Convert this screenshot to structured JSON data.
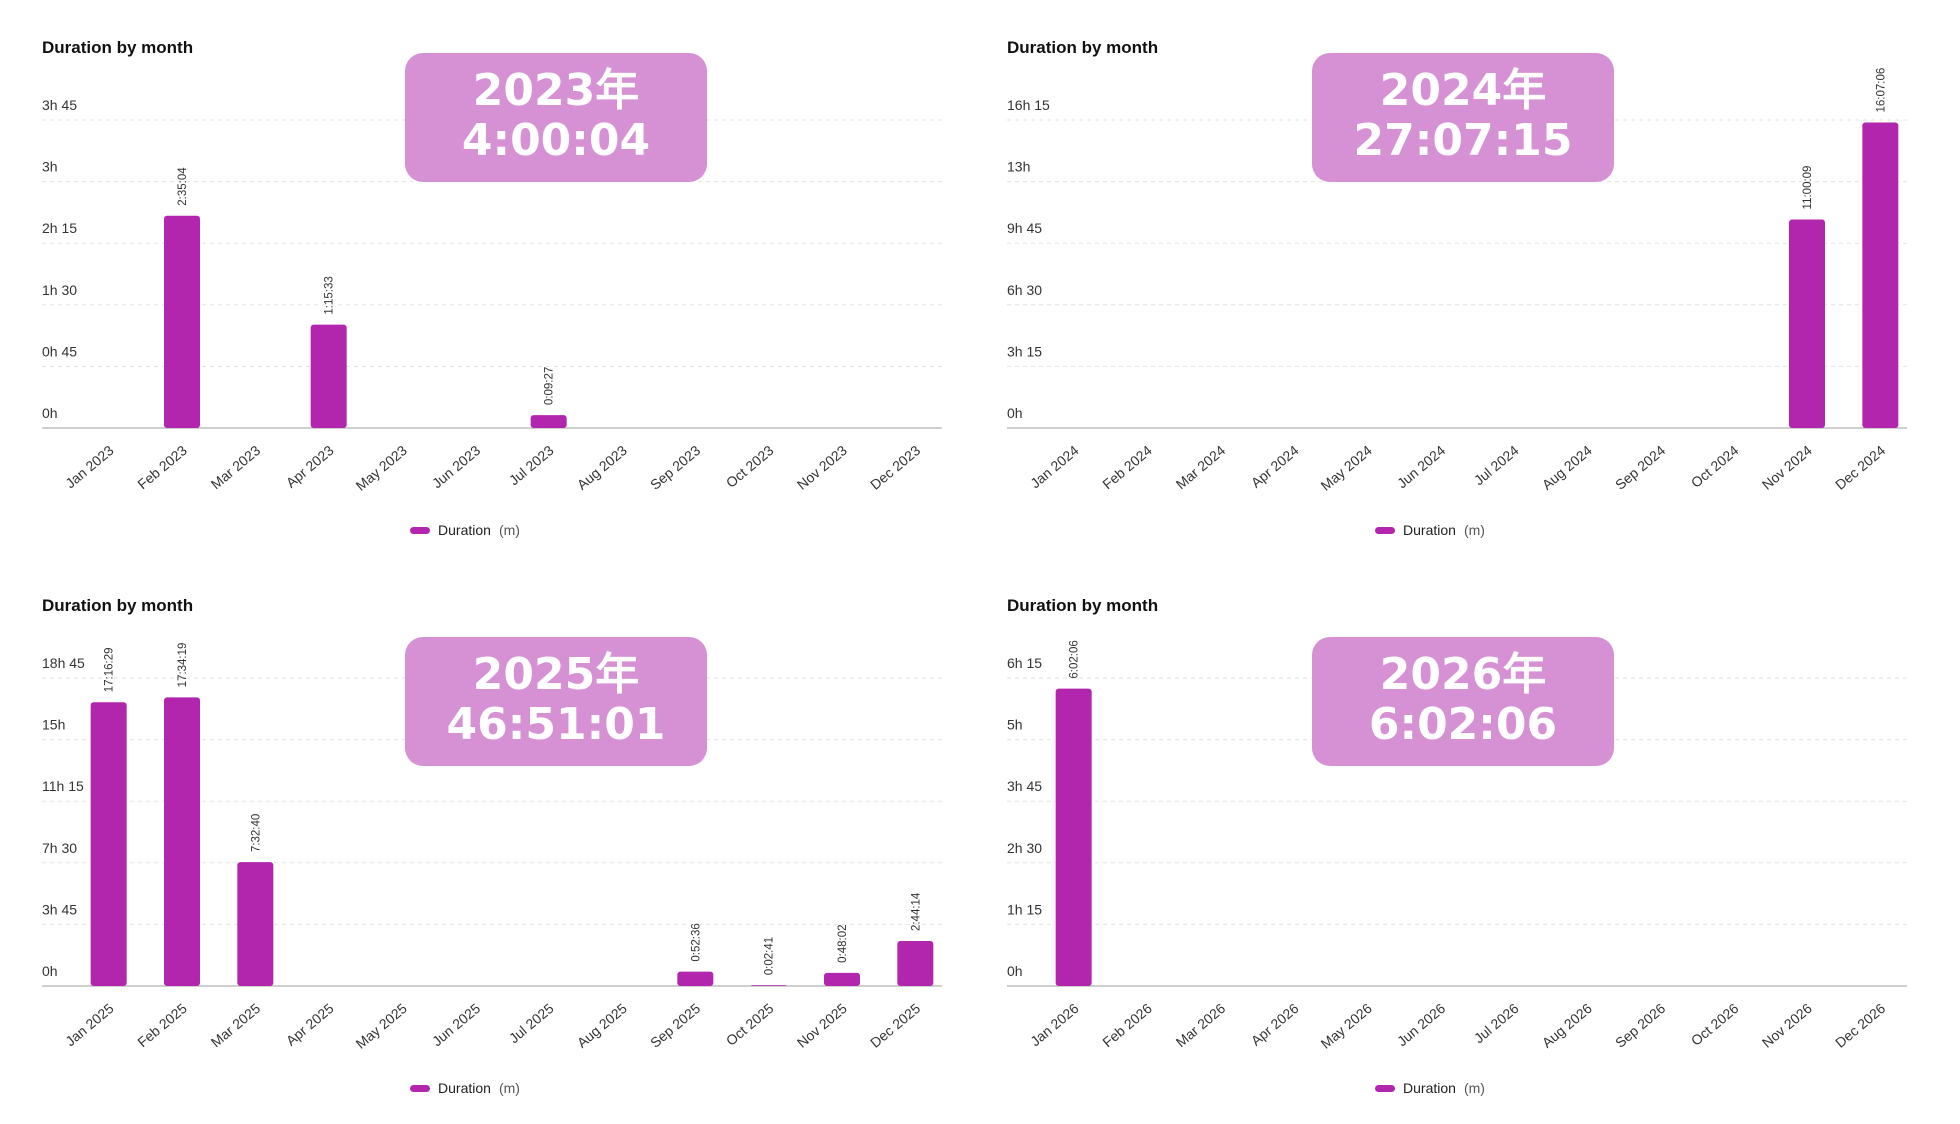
{
  "colors": {
    "bar": "#b226ad",
    "summary_bg": "#d691d4",
    "grid": "#e3e3e3",
    "axis": "#cfcfcf"
  },
  "panels": [
    {
      "title": "Duration by month",
      "summary": {
        "year": "2023年",
        "total": "4:00:04"
      },
      "legend": {
        "label": "Duration",
        "unit": "(m)"
      }
    },
    {
      "title": "Duration by month",
      "summary": {
        "year": "2024年",
        "total": "27:07:15"
      },
      "legend": {
        "label": "Duration",
        "unit": "(m)"
      }
    },
    {
      "title": "Duration by month",
      "summary": {
        "year": "2025年",
        "total": "46:51:01"
      },
      "legend": {
        "label": "Duration",
        "unit": "(m)"
      }
    },
    {
      "title": "Duration by month",
      "summary": {
        "year": "2026年",
        "total": "6:02:06"
      },
      "legend": {
        "label": "Duration",
        "unit": "(m)"
      }
    }
  ],
  "chart_data": [
    {
      "type": "bar",
      "title": "Duration by month",
      "legend": "Duration (m)",
      "categories": [
        "Jan 2023",
        "Feb 2023",
        "Mar 2023",
        "Apr 2023",
        "May 2023",
        "Jun 2023",
        "Jul 2023",
        "Aug 2023",
        "Sep 2023",
        "Oct 2023",
        "Nov 2023",
        "Dec 2023"
      ],
      "values": [
        0,
        155.07,
        0,
        75.55,
        0,
        0,
        9.45,
        0,
        0,
        0,
        0,
        0
      ],
      "data_labels": [
        "",
        "2:35:04",
        "",
        "1:15:33",
        "",
        "",
        "0:09:27",
        "",
        "",
        "",
        "",
        ""
      ],
      "yticks": [
        0,
        45,
        90,
        135,
        180,
        225
      ],
      "ytick_labels": [
        "0h",
        "0h 45",
        "1h 30",
        "2h 15",
        "3h",
        "3h 45"
      ],
      "ylim": [
        0,
        225
      ],
      "grid": true
    },
    {
      "type": "bar",
      "title": "Duration by month",
      "legend": "Duration (m)",
      "categories": [
        "Jan 2024",
        "Feb 2024",
        "Mar 2024",
        "Apr 2024",
        "May 2024",
        "Jun 2024",
        "Jul 2024",
        "Aug 2024",
        "Sep 2024",
        "Oct 2024",
        "Nov 2024",
        "Dec 2024"
      ],
      "values": [
        0,
        0,
        0,
        0,
        0,
        0,
        0,
        0,
        0,
        0,
        660.15,
        967.1
      ],
      "data_labels": [
        "",
        "",
        "",
        "",
        "",
        "",
        "",
        "",
        "",
        "",
        "11:00:09",
        "16:07:06"
      ],
      "yticks": [
        0,
        195,
        390,
        585,
        780,
        975
      ],
      "ytick_labels": [
        "0h",
        "3h 15",
        "6h 30",
        "9h 45",
        "13h",
        "16h 15"
      ],
      "ylim": [
        0,
        975
      ],
      "grid": true
    },
    {
      "type": "bar",
      "title": "Duration by month",
      "legend": "Duration (m)",
      "categories": [
        "Jan 2025",
        "Feb 2025",
        "Mar 2025",
        "Apr 2025",
        "May 2025",
        "Jun 2025",
        "Jul 2025",
        "Aug 2025",
        "Sep 2025",
        "Oct 2025",
        "Nov 2025",
        "Dec 2025"
      ],
      "values": [
        1036.48,
        1054.32,
        452.67,
        0,
        0,
        0,
        0,
        0,
        52.6,
        2.68,
        48.03,
        164.23
      ],
      "data_labels": [
        "17:16:29",
        "17:34:19",
        "7:32:40",
        "",
        "",
        "",
        "",
        "",
        "0:52:36",
        "0:02:41",
        "0:48:02",
        "2:44:14"
      ],
      "yticks": [
        0,
        225,
        450,
        675,
        900,
        1125
      ],
      "ytick_labels": [
        "0h",
        "3h 45",
        "7h 30",
        "11h 15",
        "15h",
        "18h 45"
      ],
      "ylim": [
        0,
        1125
      ],
      "grid": true
    },
    {
      "type": "bar",
      "title": "Duration by month",
      "legend": "Duration (m)",
      "categories": [
        "Jan 2026",
        "Feb 2026",
        "Mar 2026",
        "Apr 2026",
        "May 2026",
        "Jun 2026",
        "Jul 2026",
        "Aug 2026",
        "Sep 2026",
        "Oct 2026",
        "Nov 2026",
        "Dec 2026"
      ],
      "values": [
        362.1,
        0,
        0,
        0,
        0,
        0,
        0,
        0,
        0,
        0,
        0,
        0
      ],
      "data_labels": [
        "6:02:06",
        "",
        "",
        "",
        "",
        "",
        "",
        "",
        "",
        "",
        "",
        ""
      ],
      "yticks": [
        0,
        75,
        150,
        225,
        300,
        375
      ],
      "ytick_labels": [
        "0h",
        "1h 15",
        "2h 30",
        "3h 45",
        "5h",
        "6h 15"
      ],
      "ylim": [
        0,
        375
      ],
      "grid": true
    }
  ]
}
